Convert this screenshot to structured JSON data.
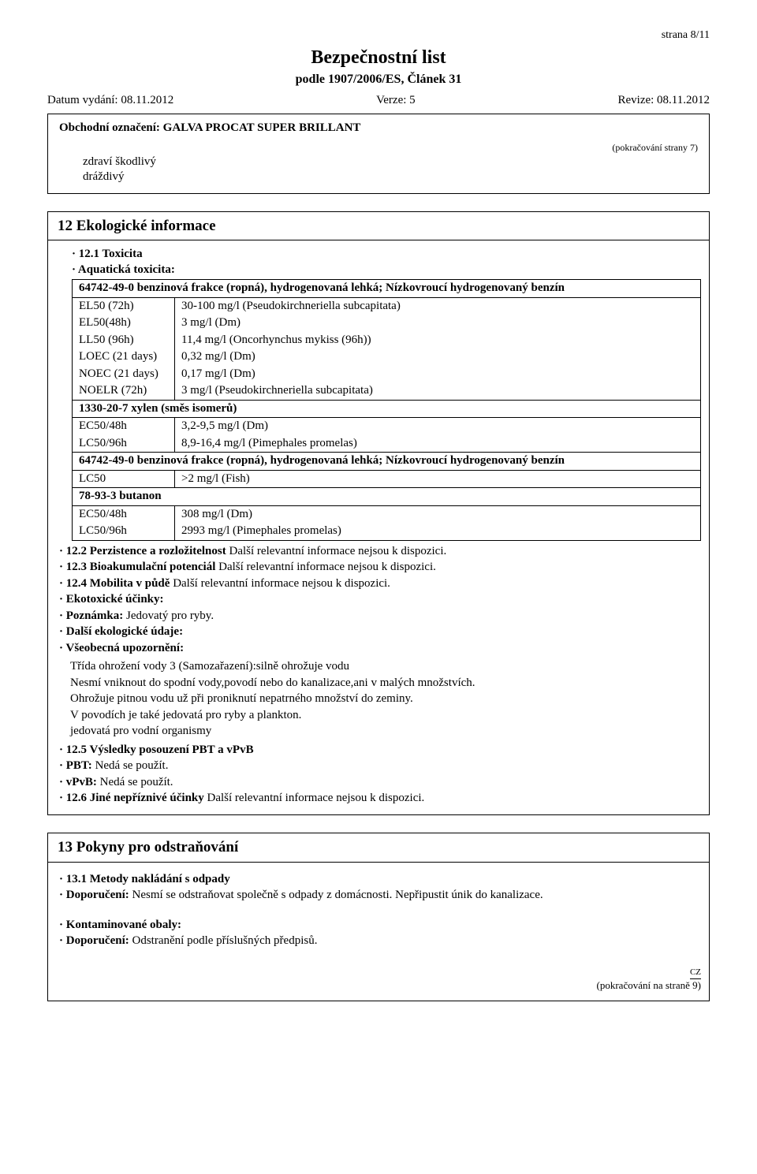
{
  "page_label": "strana 8/11",
  "doc_title": "Bezpečnostní list",
  "doc_subtitle": "podle 1907/2006/ES, Článek 31",
  "meta": {
    "date_label": "Datum vydání: 08.11.2012",
    "version_label": "Verze: 5",
    "revision_label": "Revize: 08.11.2012"
  },
  "trade_name_line": "Obchodní označení: GALVA PROCAT SUPER BRILLANT",
  "cont_prev": "(pokračování strany 7)",
  "health_lines": [
    "zdraví škodlivý",
    "dráždivý"
  ],
  "section12": {
    "heading": "12 Ekologické informace",
    "tox_label": "· 12.1 Toxicita",
    "aquatic_label": "· Aquatická toxicita:",
    "rows": [
      {
        "type": "header",
        "full": "64742-49-0 benzinová frakce (ropná), hydrogenovaná lehká; Nízkovroucí hydrogenovaný benzín"
      },
      {
        "c1": "EL50 (72h)",
        "c2": "30-100 mg/l (Pseudokirchneriella subcapitata)"
      },
      {
        "c1": "EL50(48h)",
        "c2": "3 mg/l (Dm)"
      },
      {
        "c1": "LL50 (96h)",
        "c2": "11,4 mg/l (Oncorhynchus mykiss (96h))"
      },
      {
        "c1": "LOEC (21 days)",
        "c2": "0,32 mg/l (Dm)"
      },
      {
        "c1": "NOEC (21 days)",
        "c2": "0,17 mg/l (Dm)"
      },
      {
        "c1": "NOELR (72h)",
        "c2": "3 mg/l (Pseudokirchneriella subcapitata)"
      },
      {
        "type": "header",
        "full": "1330-20-7 xylen (směs isomerů)"
      },
      {
        "c1": "EC50/48h",
        "c2": "3,2-9,5 mg/l (Dm)"
      },
      {
        "c1": "LC50/96h",
        "c2": "8,9-16,4 mg/l (Pimephales promelas)"
      },
      {
        "type": "header",
        "full": "64742-49-0 benzinová frakce (ropná), hydrogenovaná lehká; Nízkovroucí hydrogenovaný benzín"
      },
      {
        "c1": "LC50",
        "c2": ">2 mg/l (Fish)"
      },
      {
        "type": "header",
        "full": "78-93-3 butanon"
      },
      {
        "c1": "EC50/48h",
        "c2": "308 mg/l (Dm)"
      },
      {
        "c1": "LC50/96h",
        "c2": "2993 mg/l (Pimephales promelas)"
      }
    ],
    "notes": [
      {
        "bold": "· 12.2 Perzistence a rozložitelnost ",
        "rest": "Další relevantní informace nejsou k dispozici."
      },
      {
        "bold": "· 12.3 Bioakumulační potenciál ",
        "rest": "Další relevantní informace nejsou k dispozici."
      },
      {
        "bold": "· 12.4 Mobilita v půdě ",
        "rest": "Další relevantní informace nejsou k dispozici."
      },
      {
        "bold": "· Ekotoxické účinky:",
        "rest": ""
      },
      {
        "bold": "· Poznámka: ",
        "rest": "Jedovatý pro ryby."
      },
      {
        "bold": "· Další ekologické údaje:",
        "rest": ""
      },
      {
        "bold": "· Všeobecná upozornění:",
        "rest": ""
      }
    ],
    "warn_lines": [
      "Třída ohrožení vody 3 (Samozařazení):silně ohrožuje vodu",
      "Nesmí vniknout do spodní vody,povodí nebo do kanalizace,ani v malých množstvích.",
      "Ohrožuje pitnou vodu už při proniknutí nepatrného množství do zeminy.",
      "V povodích je také jedovatá pro ryby a plankton.",
      "jedovatá pro vodní organismy"
    ],
    "notes2": [
      {
        "bold": "· 12.5 Výsledky posouzení PBT a vPvB",
        "rest": ""
      },
      {
        "bold": "· PBT: ",
        "rest": "Nedá se použít."
      },
      {
        "bold": "· vPvB: ",
        "rest": "Nedá se použít."
      },
      {
        "bold": "· 12.6 Jiné nepříznivé účinky ",
        "rest": "Další relevantní informace nejsou k dispozici."
      }
    ]
  },
  "section13": {
    "heading": "13 Pokyny pro odstraňování",
    "lines": [
      {
        "bold": "· 13.1 Metody nakládání s odpady",
        "rest": ""
      },
      {
        "bold": "· Doporučení: ",
        "rest": "Nesmí se odstraňovat společně s odpady z domácnosti. Nepřipustit únik do kanalizace."
      }
    ],
    "lines2": [
      {
        "bold": "· Kontaminované obaly:",
        "rest": ""
      },
      {
        "bold": "· Doporučení: ",
        "rest": "Odstranění podle příslušných předpisů."
      }
    ]
  },
  "cz_mark": "CZ",
  "cont_next": "(pokračování na straně 9)"
}
